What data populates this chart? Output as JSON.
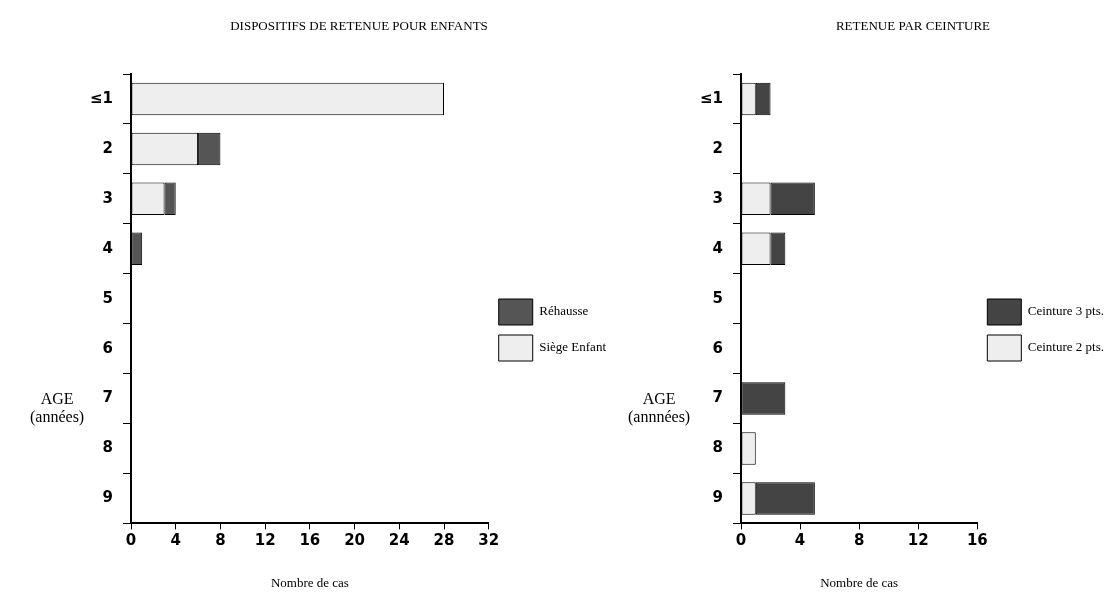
{
  "chart_data": [
    {
      "type": "bar",
      "orientation": "horizontal",
      "stacked": true,
      "title": "DISPOSITIFS DE RETENUE POUR ENFANTS",
      "xlabel": "Nombre de cas",
      "ylabel": "AGE\n(années)",
      "categories": [
        "≤1",
        "2",
        "3",
        "4",
        "5",
        "6",
        "7",
        "8",
        "9"
      ],
      "xlim": [
        0,
        32
      ],
      "xticks": [
        0,
        4,
        8,
        12,
        16,
        20,
        24,
        28,
        32
      ],
      "grid": false,
      "legend": "right",
      "series": [
        {
          "name": "Siège Enfant",
          "color": "#eeeeee",
          "values": [
            28,
            6,
            3,
            0,
            0,
            0,
            0,
            0,
            0
          ]
        },
        {
          "name": "Réhausse",
          "color": "#555555",
          "values": [
            0,
            2,
            1,
            1,
            0,
            0,
            0,
            0,
            0
          ]
        }
      ]
    },
    {
      "type": "bar",
      "orientation": "horizontal",
      "stacked": true,
      "title": "RETENUE PAR CEINTURE",
      "xlabel": "Nombre de cas",
      "ylabel": "AGE\n(annnées)",
      "categories": [
        "≤1",
        "2",
        "3",
        "4",
        "5",
        "6",
        "7",
        "8",
        "9"
      ],
      "xlim": [
        0,
        16
      ],
      "xticks": [
        0,
        4,
        8,
        12,
        16
      ],
      "grid": false,
      "legend": "right",
      "series": [
        {
          "name": "Ceinture 2 pts.",
          "color": "#eeeeee",
          "values": [
            1,
            0,
            2,
            2,
            0,
            0,
            0,
            1,
            1
          ]
        },
        {
          "name": "Ceinture 3 pts.",
          "color": "#444444",
          "values": [
            1,
            0,
            3,
            1,
            0,
            0,
            3,
            0,
            4
          ]
        }
      ]
    }
  ]
}
